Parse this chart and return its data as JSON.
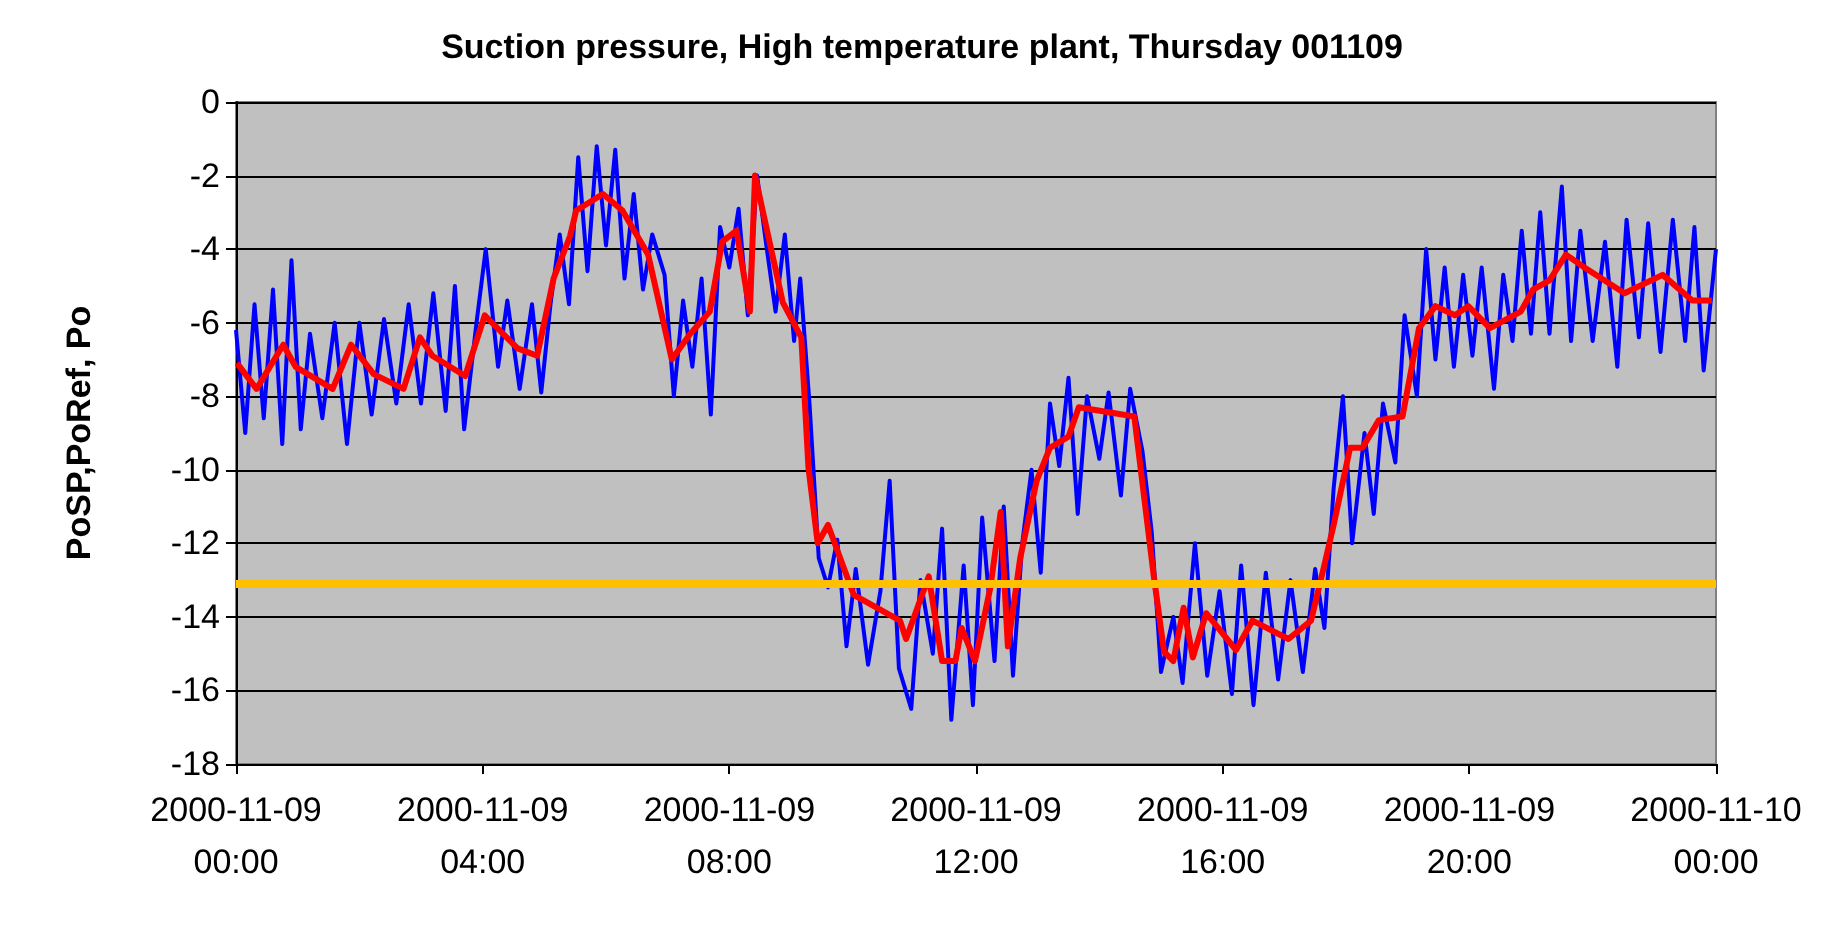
{
  "chart_data": {
    "type": "line",
    "title": "Suction pressure, High temperature plant, Thursday 001109",
    "ylabel": "PoSP,PoRef, Po",
    "xlim": [
      "2000-11-09T00:00",
      "2000-11-10T00:00"
    ],
    "xticks": [
      {
        "value": "2000-11-09T00:00",
        "label": "2000-11-09\n00:00"
      },
      {
        "value": "2000-11-09T04:00",
        "label": "2000-11-09\n04:00"
      },
      {
        "value": "2000-11-09T08:00",
        "label": "2000-11-09\n08:00"
      },
      {
        "value": "2000-11-09T12:00",
        "label": "2000-11-09\n12:00"
      },
      {
        "value": "2000-11-09T16:00",
        "label": "2000-11-09\n16:00"
      },
      {
        "value": "2000-11-09T20:00",
        "label": "2000-11-09\n20:00"
      },
      {
        "value": "2000-11-10T00:00",
        "label": "2000-11-10\n00:00"
      }
    ],
    "ylim": [
      -18,
      0
    ],
    "yticks": [
      -18,
      -16,
      -14,
      -12,
      -10,
      -8,
      -6,
      -4,
      -2,
      0
    ],
    "grid": "y",
    "marker": "none",
    "line_style": "solid",
    "series": [
      {
        "color": "#0000ff",
        "x": [
          "2000-11-09T00:00",
          "2000-11-09T00:09",
          "2000-11-09T00:18",
          "2000-11-09T00:27",
          "2000-11-09T00:36",
          "2000-11-09T00:45",
          "2000-11-09T00:54",
          "2000-11-09T01:03",
          "2000-11-09T01:12",
          "2000-11-09T01:24",
          "2000-11-09T01:36",
          "2000-11-09T01:48",
          "2000-11-09T02:00",
          "2000-11-09T02:12",
          "2000-11-09T02:24",
          "2000-11-09T02:36",
          "2000-11-09T02:48",
          "2000-11-09T03:00",
          "2000-11-09T03:12",
          "2000-11-09T03:24",
          "2000-11-09T03:33",
          "2000-11-09T03:42",
          "2000-11-09T03:54",
          "2000-11-09T04:03",
          "2000-11-09T04:15",
          "2000-11-09T04:24",
          "2000-11-09T04:36",
          "2000-11-09T04:48",
          "2000-11-09T04:57",
          "2000-11-09T05:06",
          "2000-11-09T05:15",
          "2000-11-09T05:24",
          "2000-11-09T05:33",
          "2000-11-09T05:42",
          "2000-11-09T05:51",
          "2000-11-09T06:00",
          "2000-11-09T06:09",
          "2000-11-09T06:18",
          "2000-11-09T06:27",
          "2000-11-09T06:36",
          "2000-11-09T06:45",
          "2000-11-09T06:57",
          "2000-11-09T07:06",
          "2000-11-09T07:15",
          "2000-11-09T07:24",
          "2000-11-09T07:33",
          "2000-11-09T07:42",
          "2000-11-09T07:51",
          "2000-11-09T08:00",
          "2000-11-09T08:09",
          "2000-11-09T08:18",
          "2000-11-09T08:27",
          "2000-11-09T08:36",
          "2000-11-09T08:45",
          "2000-11-09T08:54",
          "2000-11-09T09:03",
          "2000-11-09T09:09",
          "2000-11-09T09:18",
          "2000-11-09T09:27",
          "2000-11-09T09:36",
          "2000-11-09T09:45",
          "2000-11-09T09:54",
          "2000-11-09T10:03",
          "2000-11-09T10:15",
          "2000-11-09T10:27",
          "2000-11-09T10:36",
          "2000-11-09T10:45",
          "2000-11-09T10:57",
          "2000-11-09T11:06",
          "2000-11-09T11:18",
          "2000-11-09T11:27",
          "2000-11-09T11:36",
          "2000-11-09T11:48",
          "2000-11-09T11:57",
          "2000-11-09T12:06",
          "2000-11-09T12:18",
          "2000-11-09T12:27",
          "2000-11-09T12:36",
          "2000-11-09T12:45",
          "2000-11-09T12:54",
          "2000-11-09T13:03",
          "2000-11-09T13:12",
          "2000-11-09T13:21",
          "2000-11-09T13:30",
          "2000-11-09T13:39",
          "2000-11-09T13:48",
          "2000-11-09T14:00",
          "2000-11-09T14:09",
          "2000-11-09T14:21",
          "2000-11-09T14:30",
          "2000-11-09T14:42",
          "2000-11-09T14:51",
          "2000-11-09T15:00",
          "2000-11-09T15:12",
          "2000-11-09T15:21",
          "2000-11-09T15:33",
          "2000-11-09T15:45",
          "2000-11-09T15:57",
          "2000-11-09T16:09",
          "2000-11-09T16:18",
          "2000-11-09T16:30",
          "2000-11-09T16:42",
          "2000-11-09T16:54",
          "2000-11-09T17:06",
          "2000-11-09T17:18",
          "2000-11-09T17:30",
          "2000-11-09T17:39",
          "2000-11-09T17:48",
          "2000-11-09T17:57",
          "2000-11-09T18:06",
          "2000-11-09T18:18",
          "2000-11-09T18:27",
          "2000-11-09T18:36",
          "2000-11-09T18:48",
          "2000-11-09T18:57",
          "2000-11-09T19:09",
          "2000-11-09T19:18",
          "2000-11-09T19:27",
          "2000-11-09T19:36",
          "2000-11-09T19:45",
          "2000-11-09T19:54",
          "2000-11-09T20:03",
          "2000-11-09T20:12",
          "2000-11-09T20:24",
          "2000-11-09T20:33",
          "2000-11-09T20:42",
          "2000-11-09T20:51",
          "2000-11-09T21:00",
          "2000-11-09T21:09",
          "2000-11-09T21:18",
          "2000-11-09T21:30",
          "2000-11-09T21:39",
          "2000-11-09T21:48",
          "2000-11-09T22:00",
          "2000-11-09T22:12",
          "2000-11-09T22:24",
          "2000-11-09T22:33",
          "2000-11-09T22:45",
          "2000-11-09T22:54",
          "2000-11-09T23:06",
          "2000-11-09T23:18",
          "2000-11-09T23:30",
          "2000-11-09T23:39",
          "2000-11-09T23:48",
          "2000-11-10T00:00"
        ],
        "values": [
          -6.2,
          -9.0,
          -5.5,
          -8.6,
          -5.1,
          -9.3,
          -4.3,
          -8.9,
          -6.3,
          -8.6,
          -6.0,
          -9.3,
          -6.0,
          -8.5,
          -5.9,
          -8.2,
          -5.5,
          -8.2,
          -5.2,
          -8.4,
          -5.0,
          -8.9,
          -6.0,
          -4.0,
          -7.2,
          -5.4,
          -7.8,
          -5.5,
          -7.9,
          -5.5,
          -3.6,
          -5.5,
          -1.5,
          -4.6,
          -1.2,
          -3.9,
          -1.3,
          -4.8,
          -2.5,
          -5.1,
          -3.6,
          -4.7,
          -8.0,
          -5.4,
          -7.2,
          -4.8,
          -8.5,
          -3.4,
          -4.5,
          -2.9,
          -5.8,
          -2.0,
          -3.9,
          -5.7,
          -3.6,
          -6.5,
          -4.8,
          -8.2,
          -12.4,
          -13.2,
          -11.9,
          -14.8,
          -12.7,
          -15.3,
          -13.3,
          -10.3,
          -15.4,
          -16.5,
          -13.0,
          -15.0,
          -11.6,
          -16.8,
          -12.6,
          -16.4,
          -11.3,
          -15.2,
          -11.0,
          -15.6,
          -12.0,
          -10.0,
          -12.8,
          -8.2,
          -9.9,
          -7.5,
          -11.2,
          -8.0,
          -9.7,
          -7.9,
          -10.7,
          -7.8,
          -9.5,
          -11.7,
          -15.5,
          -14.0,
          -15.8,
          -12.0,
          -15.6,
          -13.3,
          -16.1,
          -12.6,
          -16.4,
          -12.8,
          -15.7,
          -13.0,
          -15.5,
          -12.7,
          -14.3,
          -10.5,
          -8.0,
          -12.0,
          -9.0,
          -11.2,
          -8.2,
          -9.8,
          -5.8,
          -8.0,
          -4.0,
          -7.0,
          -4.5,
          -7.2,
          -4.7,
          -6.9,
          -4.5,
          -7.8,
          -4.7,
          -6.5,
          -3.5,
          -6.3,
          -3.0,
          -6.3,
          -2.3,
          -6.5,
          -3.5,
          -6.5,
          -3.8,
          -7.2,
          -3.2,
          -6.4,
          -3.3,
          -6.8,
          -3.2,
          -6.5,
          -3.4,
          -7.3,
          -4.0
        ]
      },
      {
        "color": "#ff0000",
        "x": [
          "2000-11-09T00:01",
          "2000-11-09T00:20",
          "2000-11-09T00:46",
          "2000-11-09T00:58",
          "2000-11-09T01:34",
          "2000-11-09T01:52",
          "2000-11-09T02:14",
          "2000-11-09T02:43",
          "2000-11-09T02:59",
          "2000-11-09T03:11",
          "2000-11-09T03:43",
          "2000-11-09T04:02",
          "2000-11-09T04:34",
          "2000-11-09T04:53",
          "2000-11-09T05:09",
          "2000-11-09T05:25",
          "2000-11-09T05:31",
          "2000-11-09T05:57",
          "2000-11-09T06:16",
          "2000-11-09T06:41",
          "2000-11-09T07:04",
          "2000-11-09T07:22",
          "2000-11-09T07:41",
          "2000-11-09T07:53",
          "2000-11-09T08:07",
          "2000-11-09T08:20",
          "2000-11-09T08:25",
          "2000-11-09T08:52",
          "2000-11-09T09:10",
          "2000-11-09T09:17",
          "2000-11-09T09:26",
          "2000-11-09T09:36",
          "2000-11-09T10:01",
          "2000-11-09T10:46",
          "2000-11-09T10:52",
          "2000-11-09T11:14",
          "2000-11-09T11:27",
          "2000-11-09T11:40",
          "2000-11-09T11:46",
          "2000-11-09T11:59",
          "2000-11-09T12:14",
          "2000-11-09T12:24",
          "2000-11-09T12:31",
          "2000-11-09T12:43",
          "2000-11-09T12:59",
          "2000-11-09T13:12",
          "2000-11-09T13:30",
          "2000-11-09T13:40",
          "2000-11-09T14:34",
          "2000-11-09T14:53",
          "2000-11-09T15:03",
          "2000-11-09T15:12",
          "2000-11-09T15:22",
          "2000-11-09T15:31",
          "2000-11-09T15:44",
          "2000-11-09T16:13",
          "2000-11-09T16:29",
          "2000-11-09T17:04",
          "2000-11-09T17:26",
          "2000-11-09T17:38",
          "2000-11-09T17:48",
          "2000-11-09T18:04",
          "2000-11-09T18:16",
          "2000-11-09T18:32",
          "2000-11-09T18:55",
          "2000-11-09T19:11",
          "2000-11-09T19:27",
          "2000-11-09T19:46",
          "2000-11-09T19:59",
          "2000-11-09T20:20",
          "2000-11-09T20:50",
          "2000-11-09T21:02",
          "2000-11-09T21:18",
          "2000-11-09T21:34",
          "2000-11-09T21:52",
          "2000-11-09T22:31",
          "2000-11-09T23:08",
          "2000-11-09T23:37",
          "2000-11-09T23:56"
        ],
        "values": [
          -7.1,
          -7.8,
          -6.6,
          -7.2,
          -7.8,
          -6.6,
          -7.4,
          -7.8,
          -6.4,
          -6.9,
          -7.45,
          -5.8,
          -6.7,
          -6.9,
          -4.8,
          -3.65,
          -2.95,
          -2.5,
          -2.95,
          -4.15,
          -7.0,
          -6.3,
          -5.7,
          -3.8,
          -3.5,
          -5.7,
          -2.0,
          -5.45,
          -6.4,
          -9.95,
          -12.0,
          -11.5,
          -13.4,
          -14.1,
          -14.6,
          -12.9,
          -15.2,
          -15.2,
          -14.3,
          -15.2,
          -13.2,
          -11.15,
          -14.8,
          -12.4,
          -10.3,
          -9.4,
          -9.1,
          -8.3,
          -8.55,
          -12.9,
          -14.95,
          -15.2,
          -13.75,
          -15.1,
          -13.9,
          -14.9,
          -14.1,
          -14.6,
          -14.1,
          -12.7,
          -11.5,
          -9.4,
          -9.4,
          -8.65,
          -8.55,
          -6.15,
          -5.55,
          -5.8,
          -5.55,
          -6.15,
          -5.7,
          -5.1,
          -4.85,
          -4.15,
          -4.5,
          -5.2,
          -4.7,
          -5.4,
          -5.4
        ]
      }
    ],
    "ref_lines": [
      {
        "axis": "y",
        "value": -13.1,
        "color": "#ffc000"
      }
    ]
  }
}
